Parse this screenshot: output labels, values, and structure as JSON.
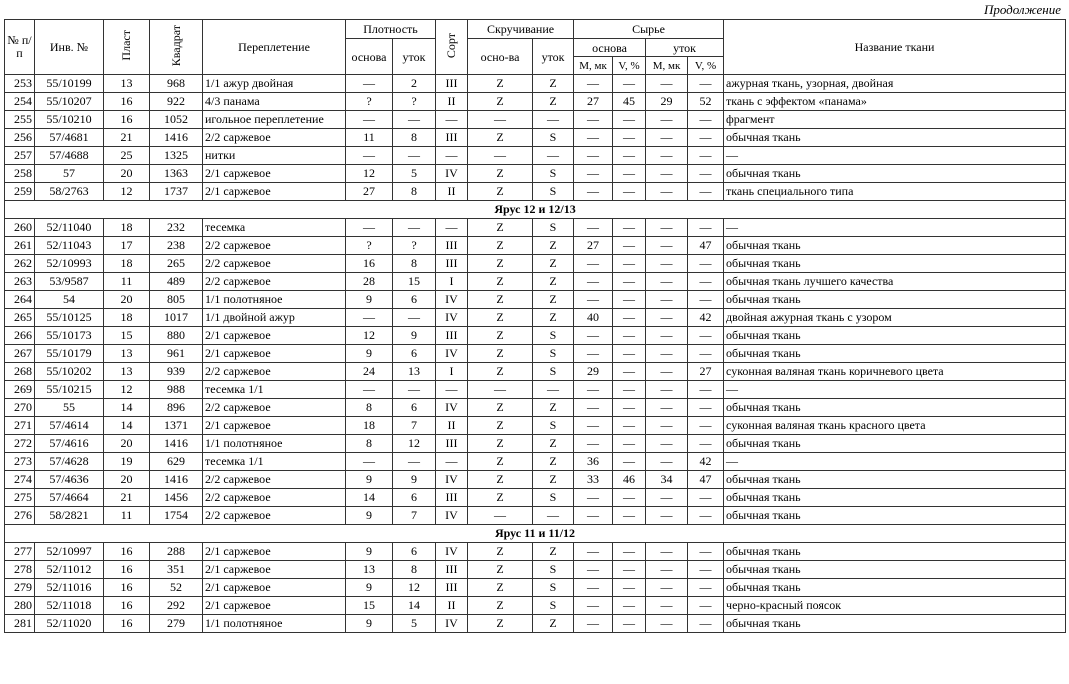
{
  "caption": "Продолжение",
  "header": {
    "num": "№ п/п",
    "inv": "Инв. №",
    "plast": "Пласт",
    "kvadrat": "Квадрат",
    "weave": "Переплетение",
    "density": "Плотность",
    "density_warp": "основа",
    "density_weft": "уток",
    "sort": "Сорт",
    "twist": "Скручивание",
    "twist_warp": "осно-ва",
    "twist_weft": "уток",
    "raw": "Сырье",
    "raw_warp": "основа",
    "raw_weft": "уток",
    "m": "M, мк",
    "v": "V, %",
    "name": "Название ткани"
  },
  "sections": [
    {
      "title": "",
      "rows": [
        [
          "253",
          "55/10199",
          "13",
          "968",
          "1/1 ажур двойная",
          "—",
          "2",
          "III",
          "Z",
          "Z",
          "—",
          "—",
          "—",
          "—",
          "ажурная ткань, узорная, двойная"
        ],
        [
          "254",
          "55/10207",
          "16",
          "922",
          "4/3 панама",
          "?",
          "?",
          "II",
          "Z",
          "Z",
          "27",
          "45",
          "29",
          "52",
          "ткань с эффектом «панама»"
        ],
        [
          "255",
          "55/10210",
          "16",
          "1052",
          "игольное переплетение",
          "—",
          "—",
          "—",
          "—",
          "—",
          "—",
          "—",
          "—",
          "—",
          "фрагмент"
        ],
        [
          "256",
          "57/4681",
          "21",
          "1416",
          "2/2 саржевое",
          "11",
          "8",
          "III",
          "Z",
          "S",
          "—",
          "—",
          "—",
          "—",
          "обычная ткань"
        ],
        [
          "257",
          "57/4688",
          "25",
          "1325",
          "нитки",
          "—",
          "—",
          "—",
          "—",
          "—",
          "—",
          "—",
          "—",
          "—",
          "—"
        ],
        [
          "258",
          "57",
          "20",
          "1363",
          "2/1 саржевое",
          "12",
          "5",
          "IV",
          "Z",
          "S",
          "—",
          "—",
          "—",
          "—",
          "обычная ткань"
        ],
        [
          "259",
          "58/2763",
          "12",
          "1737",
          "2/1 саржевое",
          "27",
          "8",
          "II",
          "Z",
          "S",
          "—",
          "—",
          "—",
          "—",
          "ткань специального типа"
        ]
      ]
    },
    {
      "title": "Ярус 12 и 12/13",
      "rows": [
        [
          "260",
          "52/11040",
          "18",
          "232",
          "тесемка",
          "—",
          "—",
          "—",
          "Z",
          "S",
          "—",
          "—",
          "—",
          "—",
          "—"
        ],
        [
          "261",
          "52/11043",
          "17",
          "238",
          "2/2 саржевое",
          "?",
          "?",
          "III",
          "Z",
          "Z",
          "27",
          "—",
          "—",
          "47",
          "обычная ткань"
        ],
        [
          "262",
          "52/10993",
          "18",
          "265",
          "2/2 саржевое",
          "16",
          "8",
          "III",
          "Z",
          "Z",
          "—",
          "—",
          "—",
          "—",
          "обычная ткань"
        ],
        [
          "263",
          "53/9587",
          "11",
          "489",
          "2/2 саржевое",
          "28",
          "15",
          "I",
          "Z",
          "Z",
          "—",
          "—",
          "—",
          "—",
          "обычная ткань лучшего качества"
        ],
        [
          "264",
          "54",
          "20",
          "805",
          "1/1 полотняное",
          "9",
          "6",
          "IV",
          "Z",
          "Z",
          "—",
          "—",
          "—",
          "—",
          "обычная ткань"
        ],
        [
          "265",
          "55/10125",
          "18",
          "1017",
          "1/1 двойной ажур",
          "—",
          "—",
          "IV",
          "Z",
          "Z",
          "40",
          "—",
          "—",
          "42",
          "двойная ажурная ткань с узором"
        ],
        [
          "266",
          "55/10173",
          "15",
          "880",
          "2/1 саржевое",
          "12",
          "9",
          "III",
          "Z",
          "S",
          "—",
          "—",
          "—",
          "—",
          "обычная ткань"
        ],
        [
          "267",
          "55/10179",
          "13",
          "961",
          "2/1 саржевое",
          "9",
          "6",
          "IV",
          "Z",
          "S",
          "—",
          "—",
          "—",
          "—",
          "обычная ткань"
        ],
        [
          "268",
          "55/10202",
          "13",
          "939",
          "2/2 саржевое",
          "24",
          "13",
          "I",
          "Z",
          "S",
          "29",
          "—",
          "—",
          "27",
          "суконная валяная ткань коричневого цвета"
        ],
        [
          "269",
          "55/10215",
          "12",
          "988",
          "тесемка 1/1",
          "—",
          "—",
          "—",
          "—",
          "—",
          "—",
          "—",
          "—",
          "—",
          "—"
        ],
        [
          "270",
          "55",
          "14",
          "896",
          "2/2 саржевое",
          "8",
          "6",
          "IV",
          "Z",
          "Z",
          "—",
          "—",
          "—",
          "—",
          "обычная ткань"
        ],
        [
          "271",
          "57/4614",
          "14",
          "1371",
          "2/1 саржевое",
          "18",
          "7",
          "II",
          "Z",
          "S",
          "—",
          "—",
          "—",
          "—",
          "суконная валяная ткань красного цвета"
        ],
        [
          "272",
          "57/4616",
          "20",
          "1416",
          "1/1 полотняное",
          "8",
          "12",
          "III",
          "Z",
          "Z",
          "—",
          "—",
          "—",
          "—",
          "обычная ткань"
        ],
        [
          "273",
          "57/4628",
          "19",
          "629",
          "тесемка 1/1",
          "—",
          "—",
          "—",
          "Z",
          "Z",
          "36",
          "—",
          "—",
          "42",
          "—"
        ],
        [
          "274",
          "57/4636",
          "20",
          "1416",
          "2/2 саржевое",
          "9",
          "9",
          "IV",
          "Z",
          "Z",
          "33",
          "46",
          "34",
          "47",
          "обычная ткань"
        ],
        [
          "275",
          "57/4664",
          "21",
          "1456",
          "2/2 саржевое",
          "14",
          "6",
          "III",
          "Z",
          "S",
          "—",
          "—",
          "—",
          "—",
          "обычная ткань"
        ],
        [
          "276",
          "58/2821",
          "11",
          "1754",
          "2/2 саржевое",
          "9",
          "7",
          "IV",
          "—",
          "—",
          "—",
          "—",
          "—",
          "—",
          "обычная ткань"
        ]
      ]
    },
    {
      "title": "Ярус 11 и 11/12",
      "rows": [
        [
          "277",
          "52/10997",
          "16",
          "288",
          "2/1 саржевое",
          "9",
          "6",
          "IV",
          "Z",
          "Z",
          "—",
          "—",
          "—",
          "—",
          "обычная ткань"
        ],
        [
          "278",
          "52/11012",
          "16",
          "351",
          "2/1 саржевое",
          "13",
          "8",
          "III",
          "Z",
          "S",
          "—",
          "—",
          "—",
          "—",
          "обычная ткань"
        ],
        [
          "279",
          "52/11016",
          "16",
          "52",
          "2/1 саржевое",
          "9",
          "12",
          "III",
          "Z",
          "S",
          "—",
          "—",
          "—",
          "—",
          "обычная ткань"
        ],
        [
          "280",
          "52/11018",
          "16",
          "292",
          "2/1 саржевое",
          "15",
          "14",
          "II",
          "Z",
          "S",
          "—",
          "—",
          "—",
          "—",
          "черно-красный поясок"
        ],
        [
          "281",
          "52/11020",
          "16",
          "279",
          "1/1 полотняное",
          "9",
          "5",
          "IV",
          "Z",
          "Z",
          "—",
          "—",
          "—",
          "—",
          "обычная ткань"
        ]
      ]
    }
  ]
}
